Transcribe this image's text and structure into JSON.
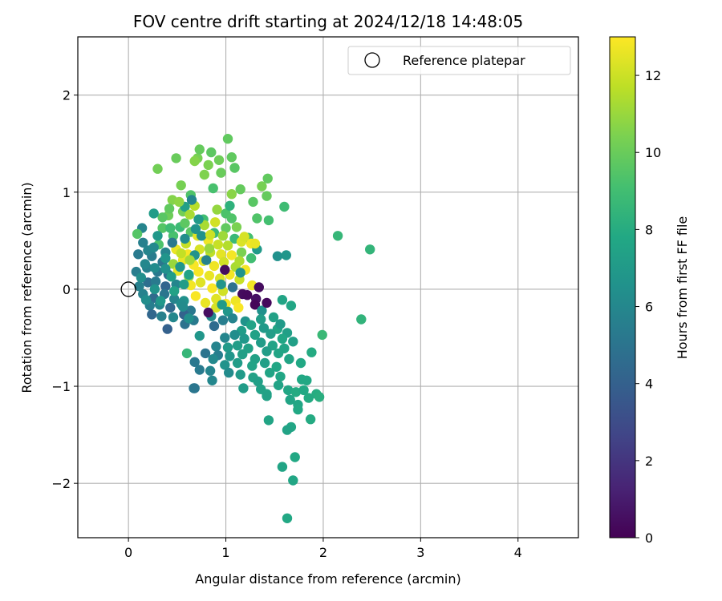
{
  "chart_data": {
    "type": "scatter",
    "title": "FOV centre drift starting at 2024/12/18 14:48:05",
    "xlabel": "Angular distance from reference (arcmin)",
    "ylabel": "Rotation from reference (arcmin)",
    "xlim": [
      -0.52,
      4.62
    ],
    "ylim": [
      -2.56,
      2.6
    ],
    "xticks": [
      0,
      1,
      2,
      3,
      4
    ],
    "yticks": [
      -2,
      -1,
      0,
      1,
      2
    ],
    "grid": true,
    "legend": {
      "placement": "upper right",
      "entries": [
        "Reference platepar"
      ]
    },
    "reference_point": {
      "label": "Reference platepar",
      "x": 0.0,
      "y": 0.0
    },
    "colorbar": {
      "label": "Hours from first FF file",
      "colormap": "viridis",
      "range": [
        0,
        13
      ],
      "ticks": [
        0,
        2,
        4,
        6,
        8,
        10,
        12
      ]
    },
    "point_columns": [
      "x",
      "y",
      "hours"
    ],
    "points": [
      [
        0.71,
        1.35,
        10.3
      ],
      [
        0.93,
        1.33,
        10.1
      ],
      [
        0.73,
        1.44,
        9.9
      ],
      [
        0.85,
        1.41,
        9.7
      ],
      [
        0.68,
        1.32,
        10.6
      ],
      [
        0.3,
        1.24,
        10.2
      ],
      [
        0.49,
        1.35,
        10.0
      ],
      [
        1.06,
        1.36,
        9.8
      ],
      [
        1.02,
        1.55,
        9.8
      ],
      [
        1.09,
        1.25,
        9.6
      ],
      [
        0.82,
        1.28,
        10.4
      ],
      [
        0.54,
        1.07,
        10.3
      ],
      [
        0.78,
        1.18,
        10.5
      ],
      [
        0.95,
        1.2,
        10.0
      ],
      [
        1.15,
        1.03,
        9.9
      ],
      [
        1.37,
        1.06,
        10.3
      ],
      [
        1.43,
        1.14,
        9.8
      ],
      [
        0.45,
        0.92,
        10.6
      ],
      [
        0.64,
        0.97,
        9.4
      ],
      [
        0.87,
        1.04,
        9.2
      ],
      [
        1.06,
        0.98,
        10.7
      ],
      [
        1.28,
        0.9,
        9.6
      ],
      [
        1.42,
        0.96,
        9.9
      ],
      [
        1.6,
        0.85,
        8.9
      ],
      [
        1.32,
        0.73,
        9.4
      ],
      [
        1.44,
        0.71,
        9.1
      ],
      [
        0.56,
        0.8,
        10.2
      ],
      [
        0.68,
        0.86,
        11.6
      ],
      [
        0.77,
        0.72,
        9.0
      ],
      [
        0.91,
        0.82,
        10.9
      ],
      [
        1.0,
        0.78,
        9.3
      ],
      [
        0.41,
        0.76,
        10.1
      ],
      [
        0.53,
        0.64,
        8.8
      ],
      [
        0.64,
        0.59,
        9.6
      ],
      [
        0.78,
        0.66,
        11.3
      ],
      [
        0.89,
        0.69,
        12.1
      ],
      [
        1.0,
        0.63,
        9.8
      ],
      [
        1.11,
        0.64,
        10.4
      ],
      [
        1.23,
        0.53,
        9.1
      ],
      [
        1.09,
        0.52,
        8.7
      ],
      [
        0.35,
        0.63,
        9.5
      ],
      [
        0.46,
        0.55,
        9.2
      ],
      [
        0.59,
        0.47,
        11.9
      ],
      [
        0.71,
        0.55,
        12.4
      ],
      [
        0.82,
        0.5,
        12.7
      ],
      [
        0.92,
        0.46,
        11.9
      ],
      [
        1.02,
        0.45,
        11.5
      ],
      [
        1.16,
        0.49,
        12.3
      ],
      [
        1.26,
        0.47,
        12.8
      ],
      [
        0.31,
        0.46,
        9.3
      ],
      [
        0.38,
        0.38,
        5.8
      ],
      [
        0.49,
        0.41,
        12.6
      ],
      [
        0.61,
        0.36,
        12.9
      ],
      [
        0.73,
        0.41,
        12.2
      ],
      [
        0.84,
        0.38,
        11.7
      ],
      [
        0.95,
        0.36,
        12.5
      ],
      [
        1.06,
        0.35,
        12.8
      ],
      [
        1.16,
        0.38,
        10.4
      ],
      [
        1.26,
        0.32,
        9.0
      ],
      [
        0.24,
        0.34,
        5.4
      ],
      [
        0.35,
        0.28,
        5.1
      ],
      [
        0.46,
        0.26,
        11.0
      ],
      [
        0.56,
        0.3,
        12.6
      ],
      [
        0.67,
        0.25,
        12.9
      ],
      [
        0.77,
        0.29,
        12.4
      ],
      [
        0.88,
        0.24,
        12.7
      ],
      [
        0.98,
        0.28,
        12.1
      ],
      [
        1.1,
        0.23,
        11.3
      ],
      [
        1.2,
        0.2,
        12.8
      ],
      [
        0.19,
        0.22,
        5.6
      ],
      [
        0.3,
        0.18,
        5.2
      ],
      [
        0.41,
        0.15,
        4.8
      ],
      [
        0.51,
        0.19,
        12.5
      ],
      [
        0.62,
        0.13,
        10.5
      ],
      [
        0.72,
        0.18,
        12.9
      ],
      [
        0.83,
        0.14,
        12.6
      ],
      [
        0.94,
        0.11,
        12.3
      ],
      [
        1.04,
        0.15,
        12.8
      ],
      [
        1.14,
        0.1,
        11.9
      ],
      [
        0.2,
        0.07,
        4.7
      ],
      [
        0.11,
        0.03,
        5.6
      ],
      [
        0.28,
        0.08,
        5.3
      ],
      [
        0.38,
        0.03,
        4.2
      ],
      [
        0.49,
        0.05,
        5.9
      ],
      [
        0.64,
        0.04,
        12.8
      ],
      [
        0.74,
        0.07,
        12.4
      ],
      [
        0.86,
        0.01,
        12.9
      ],
      [
        0.97,
        -0.02,
        12.1
      ],
      [
        1.07,
        0.02,
        4.9
      ],
      [
        1.17,
        -0.05,
        0.4
      ],
      [
        1.27,
        0.04,
        12.8
      ],
      [
        0.15,
        -0.05,
        5.7
      ],
      [
        0.26,
        -0.09,
        4.5
      ],
      [
        0.37,
        -0.05,
        5.1
      ],
      [
        0.47,
        -0.1,
        5.8
      ],
      [
        0.57,
        -0.12,
        6.5
      ],
      [
        0.69,
        -0.07,
        12.9
      ],
      [
        0.79,
        -0.14,
        12.6
      ],
      [
        0.9,
        -0.1,
        12.4
      ],
      [
        1.0,
        -0.15,
        12.8
      ],
      [
        1.1,
        -0.12,
        12.7
      ],
      [
        1.22,
        -0.06,
        0.3
      ],
      [
        1.31,
        -0.1,
        0.6
      ],
      [
        0.22,
        -0.17,
        5.5
      ],
      [
        0.32,
        -0.16,
        5.9
      ],
      [
        0.43,
        -0.19,
        4.4
      ],
      [
        0.54,
        -0.15,
        6.3
      ],
      [
        0.64,
        -0.22,
        5.2
      ],
      [
        0.9,
        -0.19,
        12.2
      ],
      [
        1.02,
        -0.23,
        6.8
      ],
      [
        1.13,
        -0.19,
        12.9
      ],
      [
        1.3,
        -0.16,
        0.2
      ],
      [
        1.37,
        -0.22,
        6.5
      ],
      [
        0.24,
        -0.26,
        4.3
      ],
      [
        0.34,
        -0.28,
        5.6
      ],
      [
        0.46,
        -0.29,
        6.0
      ],
      [
        0.57,
        -0.26,
        4.1
      ],
      [
        0.67,
        -0.32,
        5.3
      ],
      [
        0.85,
        -0.28,
        6.2
      ],
      [
        0.97,
        -0.32,
        5.5
      ],
      [
        1.07,
        -0.3,
        5.8
      ],
      [
        1.2,
        -0.33,
        6.6
      ],
      [
        1.36,
        -0.31,
        7.2
      ],
      [
        1.49,
        -0.29,
        7.4
      ],
      [
        0.58,
        -0.36,
        4.9
      ],
      [
        0.4,
        -0.41,
        4.0
      ],
      [
        0.88,
        -0.38,
        4.6
      ],
      [
        1.16,
        -0.43,
        7.1
      ],
      [
        1.26,
        -0.37,
        7.5
      ],
      [
        1.39,
        -0.4,
        7.0
      ],
      [
        1.53,
        -0.41,
        7.6
      ],
      [
        1.63,
        -0.45,
        7.3
      ],
      [
        0.99,
        -0.5,
        5.9
      ],
      [
        1.09,
        -0.47,
        6.3
      ],
      [
        1.19,
        -0.51,
        6.9
      ],
      [
        1.3,
        -0.47,
        7.4
      ],
      [
        1.46,
        -0.46,
        7.2
      ],
      [
        1.58,
        -0.51,
        7.7
      ],
      [
        1.69,
        -0.54,
        7.3
      ],
      [
        0.9,
        -0.59,
        5.8
      ],
      [
        1.02,
        -0.6,
        7.0
      ],
      [
        1.12,
        -0.58,
        7.2
      ],
      [
        1.23,
        -0.61,
        7.4
      ],
      [
        1.36,
        -0.55,
        7.1
      ],
      [
        1.48,
        -0.58,
        7.5
      ],
      [
        1.6,
        -0.61,
        7.6
      ],
      [
        0.79,
        -0.66,
        5.0
      ],
      [
        0.6,
        -0.66,
        8.6
      ],
      [
        0.92,
        -0.68,
        5.5
      ],
      [
        1.04,
        -0.69,
        6.8
      ],
      [
        1.17,
        -0.67,
        7.3
      ],
      [
        1.3,
        -0.72,
        7.4
      ],
      [
        1.42,
        -0.64,
        7.2
      ],
      [
        1.54,
        -0.66,
        7.6
      ],
      [
        1.88,
        -0.65,
        7.9
      ],
      [
        0.68,
        -0.75,
        5.2
      ],
      [
        0.87,
        -0.72,
        6.1
      ],
      [
        0.99,
        -0.78,
        6.6
      ],
      [
        1.12,
        -0.76,
        7.1
      ],
      [
        1.27,
        -0.79,
        7.5
      ],
      [
        1.4,
        -0.76,
        7.3
      ],
      [
        1.52,
        -0.8,
        7.7
      ],
      [
        1.65,
        -0.72,
        7.6
      ],
      [
        1.77,
        -0.76,
        7.8
      ],
      [
        0.73,
        -0.83,
        5.3
      ],
      [
        0.84,
        -0.84,
        5.9
      ],
      [
        1.03,
        -0.86,
        6.2
      ],
      [
        1.15,
        -0.88,
        7.0
      ],
      [
        1.28,
        -0.91,
        7.4
      ],
      [
        1.45,
        -0.86,
        7.6
      ],
      [
        1.56,
        -0.9,
        7.7
      ],
      [
        1.83,
        -0.94,
        7.8
      ],
      [
        0.86,
        -0.94,
        6.0
      ],
      [
        1.33,
        -0.95,
        7.3
      ],
      [
        1.54,
        -0.99,
        7.5
      ],
      [
        1.78,
        -0.93,
        7.8
      ],
      [
        1.18,
        -1.02,
        7.1
      ],
      [
        1.36,
        -1.03,
        7.4
      ],
      [
        0.67,
        -1.02,
        5.3
      ],
      [
        0.68,
        -1.02,
        5.1
      ],
      [
        1.42,
        -1.08,
        7.5
      ],
      [
        1.64,
        -1.04,
        7.7
      ],
      [
        1.72,
        -1.06,
        7.9
      ],
      [
        1.8,
        -1.04,
        7.8
      ],
      [
        1.93,
        -1.08,
        8.0
      ],
      [
        1.66,
        -1.14,
        7.6
      ],
      [
        1.74,
        -1.19,
        7.7
      ],
      [
        1.85,
        -1.12,
        7.9
      ],
      [
        1.96,
        -1.11,
        8.1
      ],
      [
        1.74,
        -1.24,
        7.8
      ],
      [
        1.42,
        -1.1,
        7.4
      ],
      [
        1.87,
        -1.34,
        7.9
      ],
      [
        1.44,
        -1.35,
        7.6
      ],
      [
        1.67,
        -1.42,
        7.7
      ],
      [
        1.63,
        -1.45,
        7.5
      ],
      [
        1.58,
        -1.83,
        7.6
      ],
      [
        1.71,
        -1.73,
        7.8
      ],
      [
        1.69,
        -1.97,
        7.7
      ],
      [
        1.63,
        -2.36,
        7.8
      ],
      [
        2.15,
        0.55,
        8.6
      ],
      [
        2.48,
        0.41,
        8.5
      ],
      [
        1.99,
        -0.47,
        8.7
      ],
      [
        2.39,
        -0.31,
        8.4
      ],
      [
        1.58,
        -0.11,
        7.6
      ],
      [
        1.67,
        -0.17,
        7.7
      ],
      [
        1.42,
        -0.14,
        0.3
      ],
      [
        1.34,
        0.02,
        0.4
      ],
      [
        0.82,
        -0.24,
        0.5
      ],
      [
        0.99,
        0.2,
        0.4
      ],
      [
        1.15,
        0.17,
        6.6
      ],
      [
        0.96,
        -0.16,
        7.0
      ],
      [
        0.14,
        0.63,
        5.8
      ],
      [
        0.15,
        0.48,
        5.6
      ],
      [
        0.2,
        0.4,
        5.9
      ],
      [
        0.1,
        0.36,
        5.3
      ],
      [
        0.26,
        0.43,
        6.1
      ],
      [
        0.17,
        0.26,
        6.0
      ],
      [
        0.08,
        0.18,
        5.5
      ],
      [
        0.13,
        0.12,
        6.4
      ],
      [
        0.27,
        0.22,
        6.2
      ],
      [
        0.38,
        0.32,
        6.7
      ],
      [
        0.45,
        0.48,
        5.2
      ],
      [
        0.58,
        0.52,
        6.3
      ],
      [
        0.3,
        0.55,
        6.9
      ],
      [
        0.65,
        0.92,
        6.0
      ],
      [
        0.75,
        0.55,
        6.5
      ],
      [
        0.68,
        0.35,
        6.6
      ],
      [
        0.8,
        0.3,
        5.7
      ],
      [
        0.72,
        0.72,
        7.0
      ],
      [
        0.35,
        0.74,
        9.6
      ],
      [
        0.62,
        0.15,
        7.5
      ],
      [
        0.57,
        0.05,
        7.1
      ],
      [
        0.53,
        0.23,
        6.8
      ],
      [
        0.47,
        -0.02,
        7.4
      ],
      [
        0.33,
        -0.12,
        6.9
      ],
      [
        0.44,
        0.13,
        7.2
      ],
      [
        0.38,
        0.21,
        6.5
      ],
      [
        0.69,
        0.62,
        6.6
      ],
      [
        0.58,
        0.85,
        7.3
      ],
      [
        0.95,
        0.05,
        6.7
      ],
      [
        1.32,
        0.41,
        7.0
      ],
      [
        1.53,
        0.34,
        6.5
      ],
      [
        1.62,
        0.35,
        6.8
      ],
      [
        0.62,
        -0.3,
        6.4
      ],
      [
        0.56,
        -0.18,
        6.2
      ],
      [
        0.73,
        -0.48,
        6.8
      ],
      [
        1.56,
        -0.36,
        7.0
      ],
      [
        1.04,
        0.86,
        8.3
      ],
      [
        0.27,
        0.0,
        6.6
      ],
      [
        0.18,
        -0.11,
        6.3
      ],
      [
        0.09,
        0.57,
        9.5
      ],
      [
        0.26,
        0.78,
        7.1
      ],
      [
        0.43,
        0.63,
        8.9
      ],
      [
        0.58,
        0.68,
        9.7
      ],
      [
        0.88,
        0.58,
        8.7
      ],
      [
        1.06,
        0.73,
        9.4
      ],
      [
        0.42,
        0.83,
        9.8
      ],
      [
        0.52,
        0.9,
        10.8
      ],
      [
        0.63,
        0.77,
        11.3
      ],
      [
        1.14,
        0.29,
        11.4
      ],
      [
        0.63,
        0.3,
        11.2
      ],
      [
        0.54,
        0.37,
        11.8
      ],
      [
        0.97,
        0.55,
        11.1
      ],
      [
        1.19,
        0.54,
        12.2
      ],
      [
        1.3,
        0.47,
        12.6
      ],
      [
        0.84,
        0.56,
        12.0
      ],
      [
        0.83,
        0.42,
        11.0
      ]
    ]
  }
}
